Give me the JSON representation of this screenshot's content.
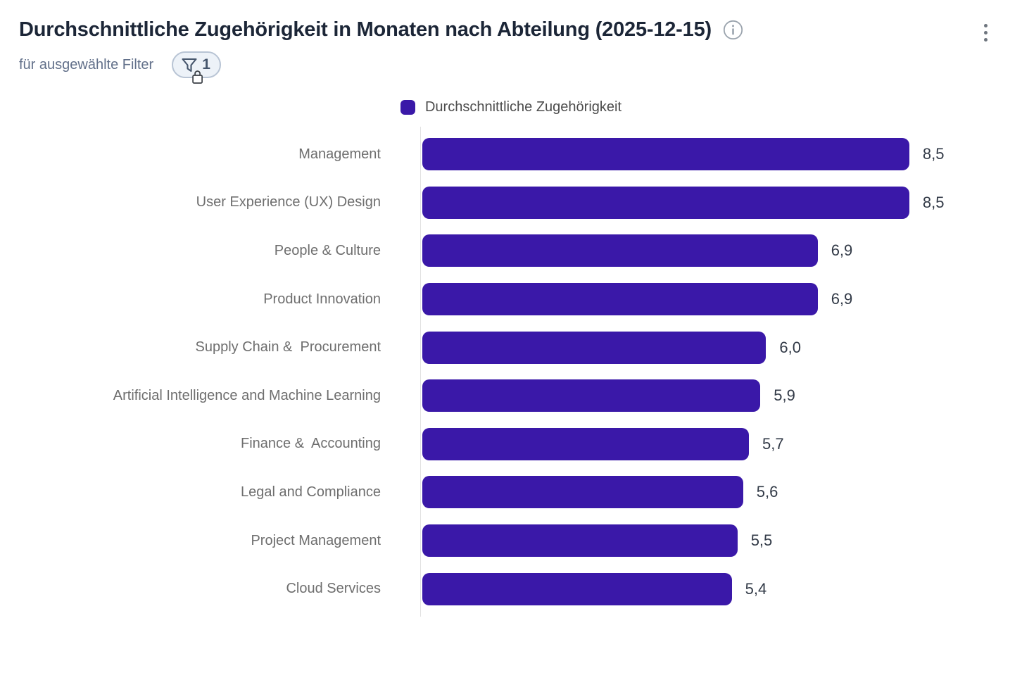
{
  "header": {
    "title": "Durchschnittliche Zugehörigkeit in Monaten nach Abteilung (2025-12-15)",
    "subtitle": "für ausgewählte Filter",
    "filter_badge_count": "1",
    "icons": [
      "info-icon",
      "filter-funnel-icon",
      "lock-icon",
      "kebab-menu-icon"
    ]
  },
  "legend": {
    "label": "Durchschnittliche Zugehörigkeit",
    "swatch_color": "#3a18a8"
  },
  "chart_data": {
    "type": "bar",
    "orientation": "horizontal",
    "title": "Durchschnittliche Zugehörigkeit in Monaten nach Abteilung (2025-12-15)",
    "series_name": "Durchschnittliche Zugehörigkeit",
    "categories": [
      "Management",
      "User Experience (UX) Design",
      "People & Culture",
      "Product Innovation",
      "Supply Chain &  Procurement",
      "Artificial Intelligence and Machine Learning",
      "Finance &  Accounting",
      "Legal and Compliance",
      "Project Management",
      "Cloud Services"
    ],
    "values": [
      8.5,
      8.5,
      6.9,
      6.9,
      6.0,
      5.9,
      5.7,
      5.6,
      5.5,
      5.4
    ],
    "value_labels": [
      "8,5",
      "8,5",
      "6,9",
      "6,9",
      "6,0",
      "5,9",
      "5,7",
      "5,6",
      "5,5",
      "5,4"
    ],
    "bar_color": "#3a18a8",
    "xlabel": "",
    "ylabel": "",
    "xlim": [
      0,
      8.5
    ],
    "grid": false,
    "legend_position": "top-center",
    "value_label_format": "decimal-comma"
  },
  "colors": {
    "accent_purple": "#3a18a8",
    "title_text": "#1c2637",
    "subtitle_text": "#62708a",
    "category_text": "#6e6e6e",
    "value_text": "#323a47",
    "axis_line": "#e2e2e2",
    "badge_border": "#b8c4d4",
    "badge_bg": "#edf2f8",
    "badge_fg": "#45556c"
  }
}
